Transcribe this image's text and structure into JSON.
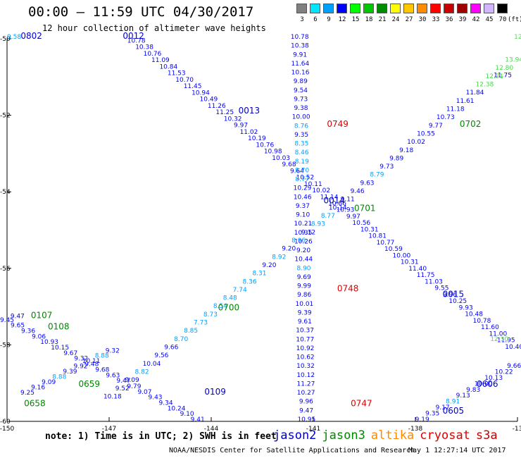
{
  "header": {
    "title": "00:00 – 11:59 UTC 04/30/2017",
    "subtitle": "12 hour collection of altimeter wave heights"
  },
  "legend": {
    "unit": "(ft)",
    "bins": [
      {
        "label": "3",
        "color": "#808080"
      },
      {
        "label": "6",
        "color": "#00e6ff"
      },
      {
        "label": "9",
        "color": "#00a0ff"
      },
      {
        "label": "12",
        "color": "#0000ff"
      },
      {
        "label": "15",
        "color": "#00ff00"
      },
      {
        "label": "18",
        "color": "#00c800"
      },
      {
        "label": "21",
        "color": "#008c00"
      },
      {
        "label": "24",
        "color": "#ffff00"
      },
      {
        "label": "27",
        "color": "#ffc800"
      },
      {
        "label": "30",
        "color": "#ff8c00"
      },
      {
        "label": "33",
        "color": "#ff0000"
      },
      {
        "label": "36",
        "color": "#c80000"
      },
      {
        "label": "39",
        "color": "#a00000"
      },
      {
        "label": "42",
        "color": "#ff00ff"
      },
      {
        "label": "45",
        "color": "#d2b4ff"
      },
      {
        "label": "70",
        "color": "#000000"
      }
    ]
  },
  "map": {
    "lon_range": [
      -150,
      -135
    ],
    "lat_range": [
      -60,
      -50
    ],
    "lat_ticks": [
      {
        "lat": -50,
        "label": "-50"
      },
      {
        "lat": -52,
        "label": "-52"
      },
      {
        "lat": -54,
        "label": "-54"
      },
      {
        "lat": -56,
        "label": "-56"
      },
      {
        "lat": -58,
        "label": "-58"
      },
      {
        "lat": -60,
        "label": "-60"
      }
    ],
    "lon_ticks": [
      {
        "lon": -150,
        "label": "-150"
      },
      {
        "lon": -147,
        "label": "-147"
      },
      {
        "lon": -144,
        "label": "-144"
      },
      {
        "lon": -141,
        "label": "-141"
      },
      {
        "lon": -138,
        "label": "-138"
      },
      {
        "lon": -135,
        "label": "-13"
      }
    ],
    "tracks": [
      {
        "sat": "jason2",
        "color": "#0000cc",
        "a": [
          -146.2,
          -50.1
        ],
        "b": [
          -135.1,
          -58.1
        ],
        "time_labels": [
          {
            "text": "0012",
            "at": [
              -146.6,
              -50.0
            ]
          },
          {
            "text": "0013",
            "at": [
              -143.2,
              -51.95
            ]
          },
          {
            "text": "0014",
            "at": [
              -140.7,
              -54.3
            ]
          },
          {
            "text": "0015",
            "at": [
              -137.2,
              -56.75
            ]
          }
        ],
        "values": [
          "10.78",
          "10.38",
          "10.76",
          "11.09",
          "10.84",
          "11.53",
          "10.70",
          "11.45",
          "10.94",
          "10.49",
          "11.26",
          "11.25",
          "10.32",
          "9.97",
          "11.02",
          "10.19",
          "10.76",
          "10.98",
          "10.03",
          "9.68",
          "9.64",
          "10.52",
          "10.11",
          "10.02",
          "11.14",
          "10.86",
          "10.93",
          "9.97",
          "10.56",
          "10.31",
          "10.81",
          "10.77",
          "10.59",
          "10.00",
          "10.31",
          "11.40",
          "11.75",
          "11.03",
          "9.55",
          "9.96",
          "10.25",
          "9.93",
          "10.48",
          "10.78",
          "11.60",
          "11.00",
          "11.95",
          "10.40"
        ]
      },
      {
        "sat": "jason3",
        "color": "#0000cc",
        "a": [
          -141.4,
          -50.0
        ],
        "b": [
          -141.2,
          -60.0
        ],
        "time_labels": [
          {
            "text": "0749",
            "at": [
              -140.6,
              -52.3
            ]
          },
          {
            "text": "0748",
            "at": [
              -140.3,
              -56.6
            ]
          },
          {
            "text": "0747",
            "at": [
              -139.9,
              -59.6
            ]
          }
        ],
        "values": [
          "10.78",
          "10.38",
          "9.91",
          "11.64",
          "10.16",
          "9.89",
          "9.54",
          "9.73",
          "9.38",
          "10.00",
          "8.76",
          "9.35",
          "8.35",
          "8.46",
          "8.19",
          "8.70",
          "8.77",
          "10.29",
          "10.46",
          "9.37",
          "9.10",
          "10.21",
          "10.35",
          "10.26",
          "9.20",
          "10.44",
          "8.90",
          "9.69",
          "9.99",
          "9.86",
          "10.01",
          "9.39",
          "9.61",
          "10.37",
          "10.77",
          "10.92",
          "10.62",
          "10.32",
          "10.12",
          "11.27",
          "10.27",
          "9.96",
          "9.47",
          "10.95"
        ]
      },
      {
        "sat": "jason2",
        "color": "#0000cc",
        "a": [
          -150.0,
          -57.4
        ],
        "b": [
          -144.4,
          -60.0
        ],
        "time_labels": [
          {
            "text": "0109",
            "at": [
              -144.2,
              -59.3
            ]
          }
        ],
        "values": [
          "9.45",
          "9.65",
          "9.36",
          "9.06",
          "10.93",
          "10.15",
          "9.67",
          "9.32",
          "9.48",
          "9.68",
          "9.63",
          "9.47",
          "9.79",
          "9.07",
          "9.43",
          "9.34",
          "10.24",
          "9.10",
          "9.41"
        ]
      },
      {
        "sat": "jason3",
        "color": "#008800",
        "a": [
          -146.9,
          -59.4
        ],
        "b": [
          -135.1,
          -50.6
        ],
        "time_labels": [
          {
            "text": "0700",
            "at": [
              -143.8,
              -57.1
            ]
          },
          {
            "text": "0701",
            "at": [
              -139.8,
              -54.5
            ]
          },
          {
            "text": "0702",
            "at": [
              -136.7,
              -52.3
            ]
          }
        ],
        "values": [
          "10.18",
          "9.52",
          "9.09",
          "8.82",
          "10.04",
          "9.56",
          "9.66",
          "8.70",
          "8.85",
          "7.73",
          "8.73",
          "8.54",
          "8.48",
          "7.74",
          "8.36",
          "8.31",
          "9.20",
          "8.92",
          "9.20",
          "8.96",
          "9.12",
          "8.93",
          "8.77",
          "10.14",
          "9.11",
          "9.46",
          "9.63",
          "8.79",
          "9.73",
          "9.89",
          "9.18",
          "10.02",
          "10.55",
          "9.77",
          "10.73",
          "11.18",
          "11.61",
          "11.84",
          "12.38",
          "12.71",
          "12.80",
          "13.94"
        ]
      },
      {
        "sat": "jason2",
        "color": "#0000cc",
        "a": [
          -137.8,
          -60.0
        ],
        "b": [
          -135.1,
          -58.6
        ],
        "time_labels": [
          {
            "text": "0605",
            "at": [
              -137.2,
              -59.8
            ]
          },
          {
            "text": "0606",
            "at": [
              -136.2,
              -59.1
            ]
          }
        ],
        "values": [
          "9.19",
          "9.35",
          "9.17",
          "8.91",
          "9.13",
          "9.83",
          "10.00",
          "10.13",
          "10.22",
          "9.66"
        ]
      },
      {
        "sat": "jason3",
        "color": "#008800",
        "a": [
          -149.4,
          -59.3
        ],
        "b": [
          -146.9,
          -58.2
        ],
        "time_labels": [
          {
            "text": "0659",
            "at": [
              -147.9,
              -59.1
            ]
          },
          {
            "text": "0658",
            "at": [
              -149.5,
              -59.6
            ]
          }
        ],
        "values": [
          "9.25",
          "9.16",
          "9.09",
          "8.88",
          "9.39",
          "9.92",
          "10.11",
          "8.88",
          "9.32"
        ]
      }
    ],
    "standalone_labels": [
      {
        "text": "0802",
        "at": [
          -149.6,
          -50.0
        ],
        "color": "#0000cc"
      },
      {
        "text": "9.58",
        "at": [
          -150.0,
          -50.0
        ],
        "color": "#00a0ff"
      },
      {
        "text": "0107",
        "at": [
          -149.3,
          -57.3
        ],
        "color": "#008800"
      },
      {
        "text": "0108",
        "at": [
          -148.8,
          -57.6
        ],
        "color": "#008800"
      },
      {
        "text": "9.47",
        "at": [
          -149.9,
          -57.3
        ],
        "color": "#0000cc"
      },
      {
        "text": "12.30",
        "at": [
          -135.8,
          -57.9
        ],
        "color": "#55dd55"
      },
      {
        "text": "11.75",
        "at": [
          -135.7,
          -51.0
        ],
        "color": "#0000cc"
      },
      {
        "text": "12",
        "at": [
          -135.1,
          -50.0
        ],
        "color": "#55dd55"
      }
    ]
  },
  "footer": {
    "note": "note: 1) Time is in UTC; 2) SWH is in feet",
    "satellites": [
      {
        "name": "jason2",
        "color": "#0000cc"
      },
      {
        "name": "jason3",
        "color": "#008800"
      },
      {
        "name": "altika",
        "color": "#ff8800"
      },
      {
        "name": "cryosat",
        "color": "#dd0000"
      },
      {
        "name": "s3a",
        "color": "#cc0000"
      }
    ],
    "credit": "NOAA/NESDIS Center for Satellite Applications and Research",
    "timestamp": "May  1 12:27:14 UTC 2017"
  }
}
